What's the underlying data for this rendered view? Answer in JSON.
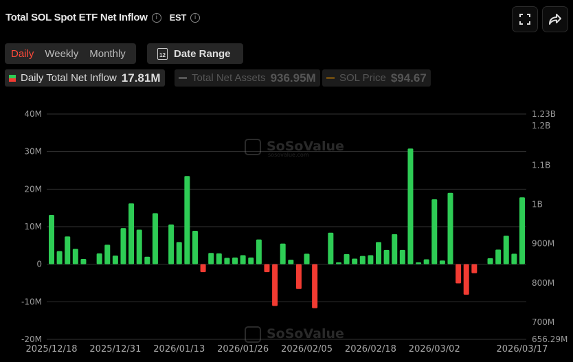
{
  "header": {
    "title": "Total SOL Spot ETF Net Inflow",
    "timezone": "EST",
    "fullscreen_icon": "fullscreen-icon",
    "share_icon": "share-icon"
  },
  "controls": {
    "tabs": [
      "Daily",
      "Weekly",
      "Monthly"
    ],
    "active_tab": "Daily",
    "date_range_label": "Date Range",
    "calendar_icon_text": "12"
  },
  "legend": [
    {
      "label": "Daily Total Net Inflow",
      "value": "17.81M",
      "active": true
    },
    {
      "label": "Total Net Assets",
      "value": "936.95M",
      "active": false
    },
    {
      "label": "SOL Price",
      "value": "$94.67",
      "active": false
    }
  ],
  "colors": {
    "positive": "#2ecc55",
    "negative": "#f23b32",
    "accent": "#ff4a3a"
  },
  "watermark": {
    "brand": "SoSoValue",
    "site": "sosovalue.com"
  },
  "chart_data": {
    "type": "bar",
    "title": "Total SOL Spot ETF Net Inflow",
    "ylabel": "Daily Total Net Inflow (USD)",
    "ylim": [
      -20,
      40
    ],
    "y_unit": "M",
    "y_ticks": [
      "40M",
      "30M",
      "20M",
      "10M",
      "0",
      "-10M",
      "-20M"
    ],
    "y_tick_values": [
      40,
      30,
      20,
      10,
      0,
      -10,
      -20
    ],
    "y2_ticks": [
      "1.23B",
      "1.2B",
      "1.1B",
      "1B",
      "900M",
      "800M",
      "700M",
      "656.29M"
    ],
    "y2_tick_values": [
      1230,
      1200,
      1100,
      1000,
      900,
      800,
      700,
      656.29
    ],
    "y2lim": [
      656.29,
      1230
    ],
    "x_ticks": [
      {
        "index": 0,
        "label": "2025/12/18"
      },
      {
        "index": 8,
        "label": "2025/12/31"
      },
      {
        "index": 16,
        "label": "2026/01/13"
      },
      {
        "index": 24,
        "label": "2026/01/26"
      },
      {
        "index": 32,
        "label": "2026/02/05"
      },
      {
        "index": 40,
        "label": "2026/02/18"
      },
      {
        "index": 48,
        "label": "2026/03/02"
      },
      {
        "index": 59,
        "label": "2026/03/17"
      }
    ],
    "values": [
      13.1,
      3.5,
      7.4,
      4.1,
      1.4,
      0,
      2.9,
      5.2,
      2.3,
      9.6,
      16.2,
      9.2,
      2.0,
      13.6,
      0,
      10.6,
      5.9,
      23.5,
      8.9,
      -2.1,
      3.0,
      2.9,
      1.7,
      1.8,
      2.4,
      1.8,
      6.6,
      -2.1,
      -11.1,
      5.5,
      1.2,
      -6.6,
      2.8,
      -11.7,
      0,
      8.4,
      0.5,
      2.7,
      1.5,
      2.2,
      2.4,
      5.9,
      3.8,
      8.0,
      3.8,
      30.8,
      0.5,
      1.3,
      17.3,
      1.0,
      19.0,
      -5.1,
      -8.1,
      -2.4,
      0,
      1.6,
      3.9,
      7.6,
      2.8,
      17.81
    ],
    "grid": true,
    "legend_position": "top-left"
  }
}
